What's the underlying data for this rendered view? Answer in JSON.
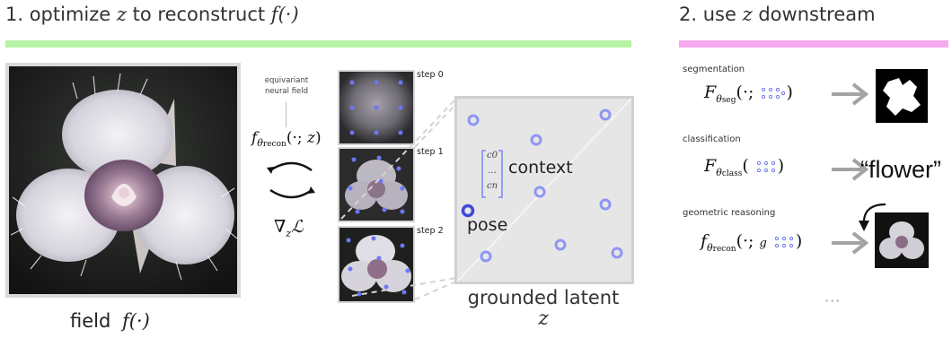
{
  "left": {
    "header_prefix": "1. optimize",
    "header_var": "z",
    "header_mid": "to reconstruct",
    "header_func": "f(·)",
    "bar_color": "#b7f3a4",
    "field_label_word": "field",
    "field_label_func": "f(·)",
    "eq_field_label": "equivariant neural field",
    "recon_formula": "f_θrecon(·; z)",
    "grad_formula": "∇zℒ",
    "steps": [
      "step 0",
      "step 1",
      "step 2"
    ],
    "context_label": "context",
    "context_vector": [
      "c0",
      "...",
      "cn"
    ],
    "pose_label": "pose",
    "latent_label": "grounded latent",
    "latent_var": "z"
  },
  "right": {
    "header_prefix": "2. use",
    "header_var": "z",
    "header_suffix": "downstream",
    "bar_color": "#f6a9f0",
    "tasks": [
      {
        "label": "segmentation",
        "formula": "F_θseg(·; )"
      },
      {
        "label": "classification",
        "formula": "F_θclass( )"
      },
      {
        "label": "geometric reasoning",
        "formula": "f_θrecon(·; g )"
      }
    ],
    "class_output": "“flower”",
    "ellipsis": "···"
  },
  "colors": {
    "latent_point": "#7d86f0",
    "latent_point_dark": "#3c49d6",
    "arrow_gray": "#a3a3a3",
    "panel_bg": "#e6e6e6",
    "panel_border": "#d0d0d0"
  }
}
